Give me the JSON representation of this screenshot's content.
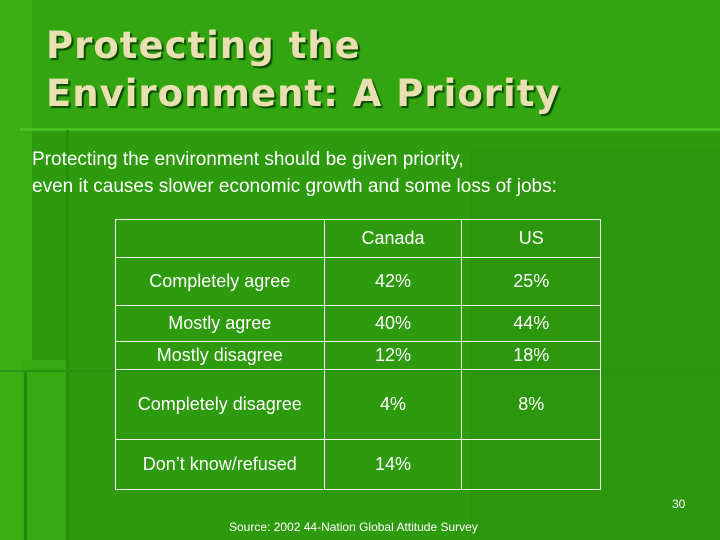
{
  "slide": {
    "title_lines": [
      "Protecting the",
      "Environment:  A Priority"
    ],
    "subtitle_lines": [
      "Protecting the environment should be given priority,",
      "even it causes slower economic growth and some loss of jobs:"
    ],
    "table": {
      "headers": [
        "",
        "Canada",
        "US"
      ],
      "rows": [
        {
          "label": "Completely agree",
          "canada": "42%",
          "us": "25%"
        },
        {
          "label": "Mostly agree",
          "canada": "40%",
          "us": "44%"
        },
        {
          "label": "Mostly disagree",
          "canada": "12%",
          "us": "18%"
        },
        {
          "label": "Completely disagree",
          "canada": "4%",
          "us": "8%"
        },
        {
          "label": "Don’t know/refused",
          "canada": "14%",
          "us": ""
        }
      ]
    },
    "page_number": "30",
    "source": "Source:  2002 44-Nation Global Attitude Survey"
  },
  "colors": {
    "background": "#2e9a0e",
    "title": "#e8e0b0",
    "text": "#ffffff"
  }
}
